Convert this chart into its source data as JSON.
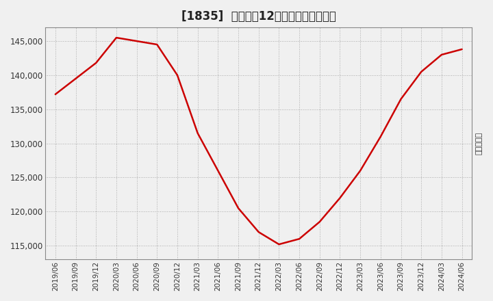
{
  "title": "[1835]  売上高の12か月移動合計の推移",
  "ylabel": "（百万円）",
  "line_color": "#cc0000",
  "background_color": "#f0f0f0",
  "plot_bg_color": "#f0f0f0",
  "grid_color": "#999999",
  "ylim": [
    113000,
    147000
  ],
  "yticks": [
    115000,
    120000,
    125000,
    130000,
    135000,
    140000,
    145000
  ],
  "dates": [
    "2019/06",
    "2019/09",
    "2019/12",
    "2020/03",
    "2020/06",
    "2020/09",
    "2020/12",
    "2021/03",
    "2021/06",
    "2021/09",
    "2021/12",
    "2022/03",
    "2022/06",
    "2022/09",
    "2022/12",
    "2023/03",
    "2023/06",
    "2023/09",
    "2023/12",
    "2024/03",
    "2024/06"
  ],
  "values": [
    137200,
    139500,
    141800,
    145500,
    145000,
    144500,
    140000,
    131500,
    126000,
    120500,
    117000,
    115200,
    116000,
    118500,
    122000,
    126000,
    131000,
    136500,
    140500,
    143000,
    143800
  ]
}
